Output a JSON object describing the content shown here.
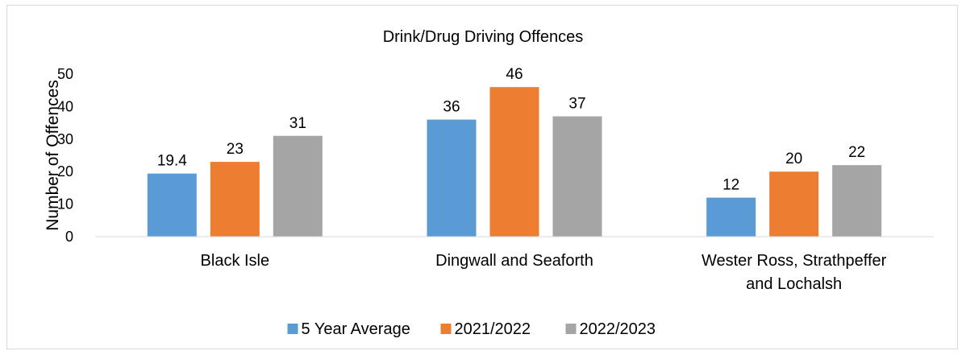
{
  "chart_data": {
    "type": "bar",
    "title": "Drink/Drug Driving Offences",
    "xlabel": "",
    "ylabel": "Number of Offences",
    "ylim": [
      0,
      50
    ],
    "yticks": [
      0,
      10,
      20,
      30,
      40,
      50
    ],
    "grid": false,
    "legend_position": "bottom",
    "categories": [
      [
        "Black Isle"
      ],
      [
        "Dingwall and Seaforth"
      ],
      [
        "Wester Ross, Strathpeffer",
        "and Lochalsh"
      ]
    ],
    "series": [
      {
        "name": "5 Year Average",
        "color": "#5b9bd5",
        "values": [
          19.4,
          36,
          12
        ],
        "labels": [
          "19.4",
          "36",
          "12"
        ]
      },
      {
        "name": "2021/2022",
        "color": "#ed7d31",
        "values": [
          23,
          46,
          20
        ],
        "labels": [
          "23",
          "46",
          "20"
        ]
      },
      {
        "name": "2022/2023",
        "color": "#a5a5a5",
        "values": [
          31,
          37,
          22
        ],
        "labels": [
          "31",
          "37",
          "22"
        ]
      }
    ]
  }
}
